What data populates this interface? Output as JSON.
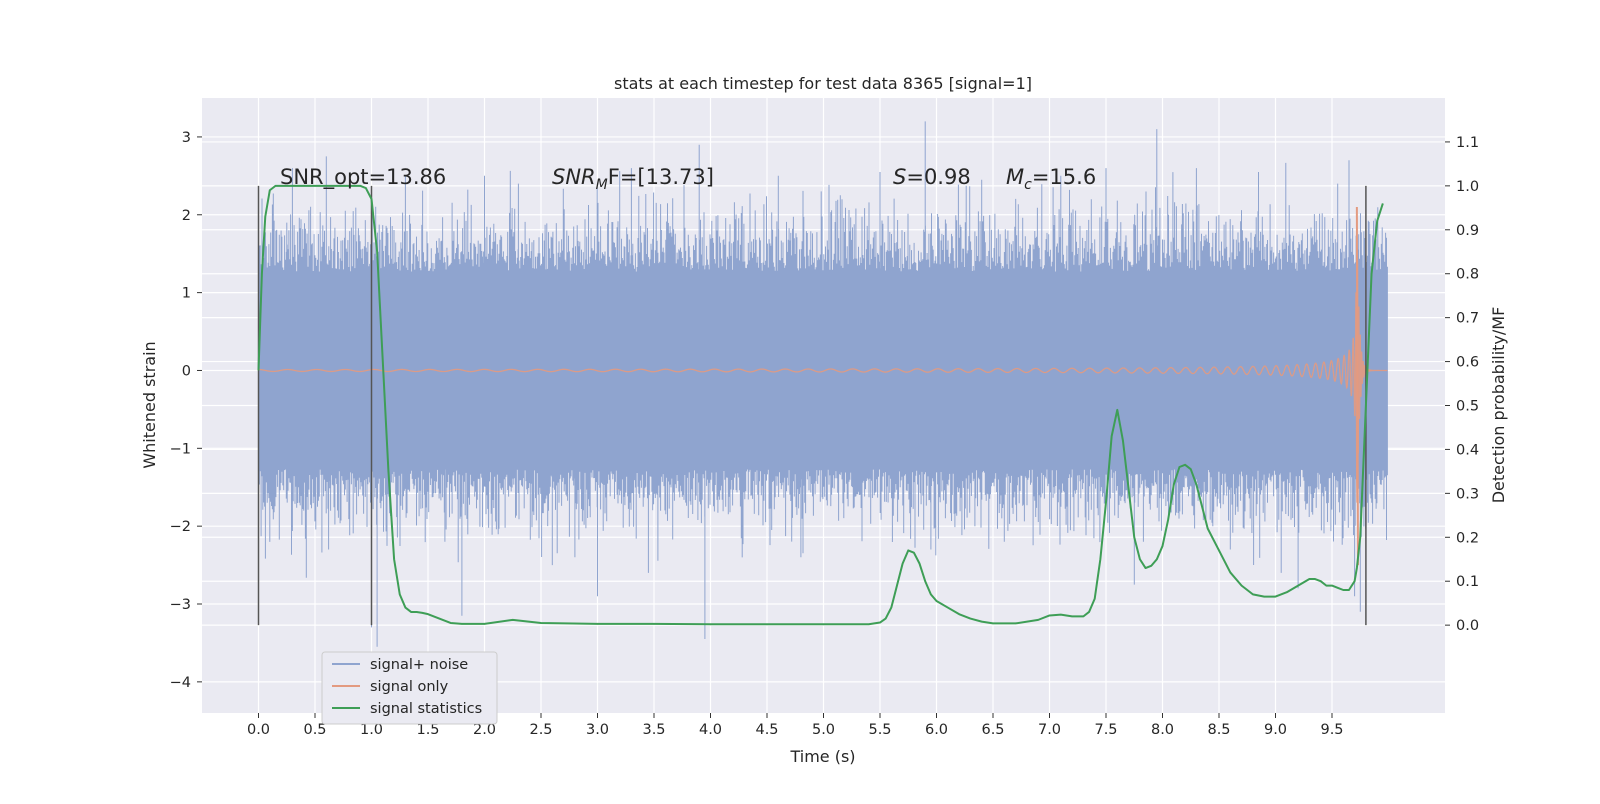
{
  "chart_data": {
    "type": "line",
    "title": "stats at each timestep for test data 8365 [signal=1]",
    "xlabel": "Time (s)",
    "ylabel_left": "Whitened strain",
    "ylabel_right": "Detection probability/MF",
    "xlim": [
      -0.5,
      10.5
    ],
    "ylim_left": [
      -4.4,
      3.5
    ],
    "ylim_right": [
      -0.2,
      1.2
    ],
    "x_ticks": [
      "0.0",
      "0.5",
      "1.0",
      "1.5",
      "2.0",
      "2.5",
      "3.0",
      "3.5",
      "4.0",
      "4.5",
      "5.0",
      "5.5",
      "6.0",
      "6.5",
      "7.0",
      "7.5",
      "8.0",
      "8.5",
      "9.0",
      "9.5"
    ],
    "x_tick_values": [
      0,
      0.5,
      1,
      1.5,
      2,
      2.5,
      3,
      3.5,
      4,
      4.5,
      5,
      5.5,
      6,
      6.5,
      7,
      7.5,
      8,
      8.5,
      9,
      9.5
    ],
    "y_ticks_left": [
      "−4",
      "−3",
      "−2",
      "−1",
      "0",
      "1",
      "2",
      "3"
    ],
    "y_tick_values_left": [
      -4,
      -3,
      -2,
      -1,
      0,
      1,
      2,
      3
    ],
    "y_ticks_right": [
      "0.0",
      "0.1",
      "0.2",
      "0.3",
      "0.4",
      "0.5",
      "0.6",
      "0.7",
      "0.8",
      "0.9",
      "1.0",
      "1.1"
    ],
    "y_tick_values_right": [
      0,
      0.1,
      0.2,
      0.3,
      0.4,
      0.5,
      0.6,
      0.7,
      0.8,
      0.9,
      1.0,
      1.1
    ],
    "grid": true,
    "legend_position": "lower-left",
    "colors": {
      "background": "#eaeaf2",
      "grid": "#ffffff",
      "noise": "#8fa4cf",
      "signal": "#e39a80",
      "stats": "#3e9e56",
      "vline": "#555555"
    },
    "annotations": {
      "snr_opt": "SNR_opt=13.86",
      "snr_mf_var": "SNR",
      "snr_mf_sub": "M",
      "snr_mf_rest": "F=[13.73]",
      "s_var": "S",
      "s_rest": "=0.98",
      "mc_var": "M",
      "mc_sub": "c",
      "mc_rest": "=15.6"
    },
    "vertical_lines_x": [
      0.0,
      1.0,
      9.8
    ],
    "vertical_lines_range_right": [
      0.0,
      1.0
    ],
    "series": [
      {
        "name": "signal+ noise",
        "kind": "strain",
        "x_range": [
          0.0,
          9.99
        ],
        "envelope": 1.27,
        "outliers": [
          [
            0.25,
            1.9
          ],
          [
            0.3,
            2.6
          ],
          [
            0.6,
            2.75
          ],
          [
            0.62,
            -2.3
          ],
          [
            1.0,
            -3.3
          ],
          [
            1.05,
            -3.55
          ],
          [
            1.3,
            2.5
          ],
          [
            1.65,
            -2.2
          ],
          [
            1.8,
            -3.15
          ],
          [
            2.0,
            2.5
          ],
          [
            2.3,
            2.4
          ],
          [
            2.6,
            -2.5
          ],
          [
            2.8,
            -2.4
          ],
          [
            3.0,
            -2.9
          ],
          [
            3.3,
            2.6
          ],
          [
            3.45,
            -2.6
          ],
          [
            3.9,
            2.9
          ],
          [
            3.95,
            -3.45
          ],
          [
            4.6,
            2.5
          ],
          [
            4.8,
            -2.4
          ],
          [
            5.5,
            2.55
          ],
          [
            5.9,
            3.2
          ],
          [
            5.95,
            -2.3
          ],
          [
            6.4,
            2.45
          ],
          [
            6.6,
            -2.2
          ],
          [
            7.1,
            2.5
          ],
          [
            7.5,
            2.6
          ],
          [
            7.75,
            -2.75
          ],
          [
            7.95,
            3.1
          ],
          [
            8.3,
            2.6
          ],
          [
            8.6,
            -2.3
          ],
          [
            8.85,
            2.55
          ],
          [
            9.05,
            -2.6
          ],
          [
            9.2,
            -2.8
          ],
          [
            9.55,
            2.4
          ],
          [
            9.65,
            2.7
          ],
          [
            9.7,
            -2.9
          ],
          [
            9.75,
            -3.1
          ]
        ]
      },
      {
        "name": "signal only",
        "kind": "chirp",
        "x_range": [
          0.0,
          9.99
        ],
        "merger_time": 9.72,
        "peak_amplitude": 2.1,
        "min_amplitude": -2.5
      },
      {
        "name": "signal statistics",
        "kind": "stats",
        "x": [
          0.0,
          0.03,
          0.06,
          0.1,
          0.15,
          0.2,
          0.3,
          0.5,
          0.7,
          0.9,
          0.95,
          1.0,
          1.05,
          1.1,
          1.15,
          1.2,
          1.25,
          1.3,
          1.35,
          1.4,
          1.45,
          1.5,
          1.6,
          1.7,
          1.8,
          2.0,
          2.25,
          2.5,
          3.0,
          3.5,
          4.0,
          4.5,
          5.0,
          5.4,
          5.5,
          5.55,
          5.6,
          5.65,
          5.7,
          5.75,
          5.8,
          5.85,
          5.9,
          5.95,
          6.0,
          6.1,
          6.2,
          6.3,
          6.4,
          6.5,
          6.7,
          6.9,
          7.0,
          7.1,
          7.2,
          7.3,
          7.35,
          7.4,
          7.45,
          7.5,
          7.55,
          7.6,
          7.65,
          7.7,
          7.75,
          7.8,
          7.85,
          7.9,
          7.95,
          8.0,
          8.05,
          8.1,
          8.15,
          8.2,
          8.25,
          8.3,
          8.35,
          8.4,
          8.5,
          8.6,
          8.7,
          8.8,
          8.9,
          9.0,
          9.1,
          9.2,
          9.3,
          9.35,
          9.4,
          9.45,
          9.5,
          9.55,
          9.6,
          9.65,
          9.7,
          9.72,
          9.75,
          9.8,
          9.85,
          9.9,
          9.95
        ],
        "y": [
          0.58,
          0.8,
          0.93,
          0.99,
          1.0,
          1.0,
          1.0,
          1.0,
          1.0,
          1.0,
          0.995,
          0.97,
          0.85,
          0.6,
          0.35,
          0.15,
          0.07,
          0.04,
          0.03,
          0.03,
          0.028,
          0.025,
          0.015,
          0.005,
          0.003,
          0.003,
          0.012,
          0.005,
          0.003,
          0.003,
          0.002,
          0.002,
          0.002,
          0.002,
          0.006,
          0.015,
          0.04,
          0.09,
          0.14,
          0.17,
          0.165,
          0.14,
          0.1,
          0.07,
          0.055,
          0.04,
          0.025,
          0.015,
          0.008,
          0.004,
          0.004,
          0.012,
          0.022,
          0.024,
          0.02,
          0.02,
          0.03,
          0.06,
          0.15,
          0.28,
          0.43,
          0.49,
          0.42,
          0.31,
          0.2,
          0.15,
          0.13,
          0.135,
          0.15,
          0.18,
          0.24,
          0.32,
          0.36,
          0.365,
          0.355,
          0.32,
          0.27,
          0.22,
          0.17,
          0.12,
          0.09,
          0.07,
          0.065,
          0.065,
          0.075,
          0.09,
          0.105,
          0.105,
          0.1,
          0.09,
          0.09,
          0.085,
          0.08,
          0.08,
          0.1,
          0.13,
          0.2,
          0.5,
          0.8,
          0.92,
          0.96
        ]
      }
    ]
  }
}
